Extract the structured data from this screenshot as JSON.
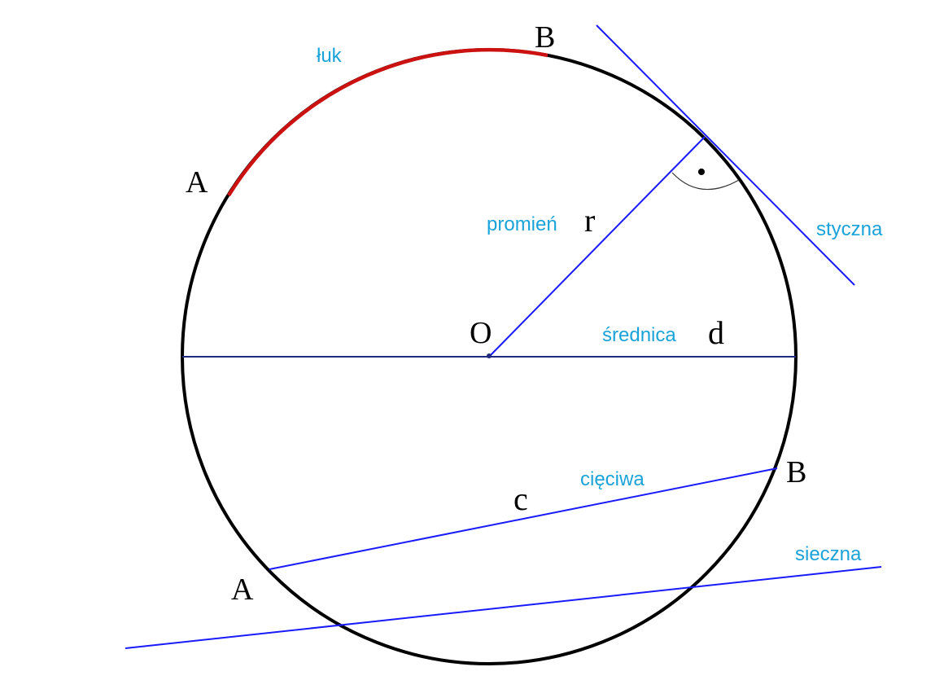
{
  "colors": {
    "circle": "#000000",
    "arc": "#cc1111",
    "construction_line": "#1a1aff",
    "diameter_line": "#1f2a80",
    "caption": "#1aa3d9",
    "point_label": "#000000"
  },
  "captions": {
    "arc": "łuk",
    "radius": "promień",
    "tangent": "styczna",
    "diameter": "średnica",
    "chord": "cięciwa",
    "secant": "sieczna"
  },
  "symbols": {
    "center": "O",
    "radius": "r",
    "diameter": "d",
    "chord": "c",
    "arc_start": "A",
    "arc_end": "B",
    "chord_start": "A",
    "chord_end": "B",
    "right_angle_dot": "•"
  }
}
